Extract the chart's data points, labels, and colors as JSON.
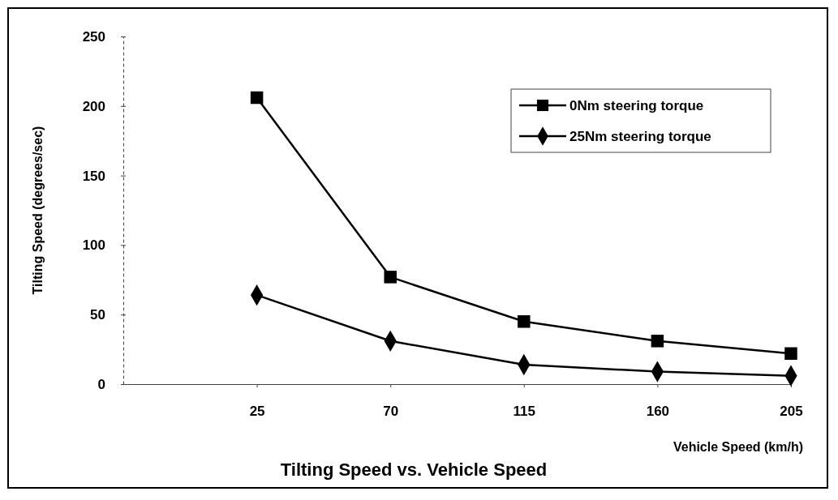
{
  "chart_data": {
    "type": "line",
    "title": "Tilting Speed vs. Vehicle Speed",
    "xlabel": "Vehicle Speed (km/h)",
    "ylabel": "Tilting Speed (degrees/sec)",
    "categories": [
      "25",
      "70",
      "115",
      "160",
      "205"
    ],
    "series": [
      {
        "name": "0Nm steering torque",
        "color": "#000000",
        "marker": "square",
        "values": [
          206,
          77,
          45,
          31,
          22
        ]
      },
      {
        "name": "25Nm steering torque",
        "color": "#000000",
        "marker": "diamond",
        "values": [
          64,
          31,
          14,
          9,
          6
        ]
      }
    ],
    "ylim": [
      0,
      250
    ],
    "yticks": [
      0,
      50,
      100,
      150,
      200,
      250
    ],
    "grid": false,
    "legend": "top right",
    "line_style": "solid"
  }
}
